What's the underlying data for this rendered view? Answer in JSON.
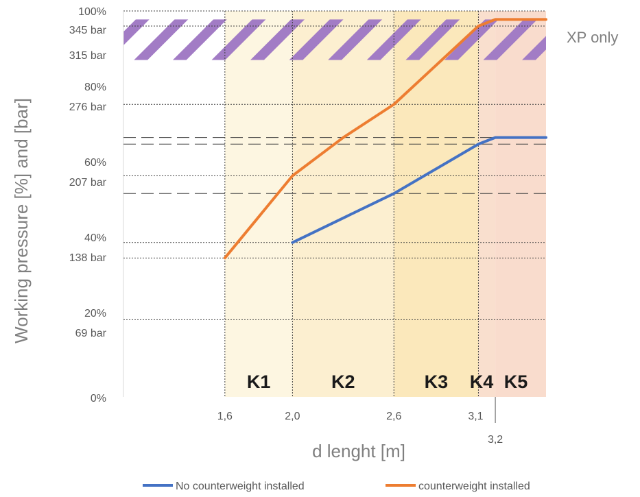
{
  "chart_data": {
    "type": "line",
    "xlabel": "d lenght [m]",
    "ylabel": "Working pressure [%] and [bar]",
    "xlim": [
      1.0,
      3.5
    ],
    "ylim": [
      0,
      100
    ],
    "y_ticks": [
      {
        "value": 100,
        "label": "100%"
      },
      {
        "value": 96.1,
        "label": "345 bar"
      },
      {
        "value": 87.3,
        "label": "315 bar"
      },
      {
        "value": 80,
        "label": "80%"
      },
      {
        "value": 75.8,
        "label": "276 bar"
      },
      {
        "value": 60,
        "label": "60%"
      },
      {
        "value": 55.8,
        "label": "207 bar"
      },
      {
        "value": 40,
        "label": "40%"
      },
      {
        "value": 36.1,
        "label": "138 bar"
      },
      {
        "value": 20,
        "label": "20%"
      },
      {
        "value": 16.4,
        "label": "69 bar"
      },
      {
        "value": 0,
        "label": "0%"
      }
    ],
    "x_ticks": [
      {
        "value": 1.6,
        "label": "1,6"
      },
      {
        "value": 2.0,
        "label": "2,0"
      },
      {
        "value": 2.6,
        "label": "2,6"
      },
      {
        "value": 3.1,
        "label": "3,1"
      },
      {
        "value": 3.2,
        "label": "3,2"
      }
    ],
    "dotted_h_lines": [
      96.1,
      75.8,
      57.3,
      40,
      36,
      20
    ],
    "dashed_h_lines": [
      67.2,
      65.5,
      52.7
    ],
    "zones": [
      {
        "label": "K1",
        "from": 1.6,
        "to": 2.0,
        "color": "#fdf6e1"
      },
      {
        "label": "K2",
        "from": 2.0,
        "to": 2.6,
        "color": "#fcefd0"
      },
      {
        "label": "K3",
        "from": 2.6,
        "to": 3.1,
        "color": "#fbe8bb"
      },
      {
        "label": "K4",
        "from": 3.1,
        "to": 3.2,
        "color": "#f9dfce"
      },
      {
        "label": "K5",
        "from": 3.2,
        "to": 3.5,
        "color": "#f9dccd"
      }
    ],
    "hatch_band": {
      "from": 87.3,
      "to": 97.8,
      "color": "#a27cc5",
      "label": "XP only"
    },
    "series": [
      {
        "name": "No counterweight installed",
        "color": "#4472c4",
        "points": [
          [
            2.0,
            40
          ],
          [
            2.6,
            52.7
          ],
          [
            3.1,
            65.5
          ],
          [
            3.2,
            67.2
          ],
          [
            3.5,
            67.2
          ]
        ]
      },
      {
        "name": "counterweight installed",
        "color": "#ed7d31",
        "points": [
          [
            1.6,
            36
          ],
          [
            2.0,
            57.3
          ],
          [
            2.3,
            67.2
          ],
          [
            2.6,
            75.8
          ],
          [
            3.1,
            96.1
          ],
          [
            3.2,
            97.8
          ],
          [
            3.5,
            97.8
          ]
        ]
      }
    ]
  }
}
